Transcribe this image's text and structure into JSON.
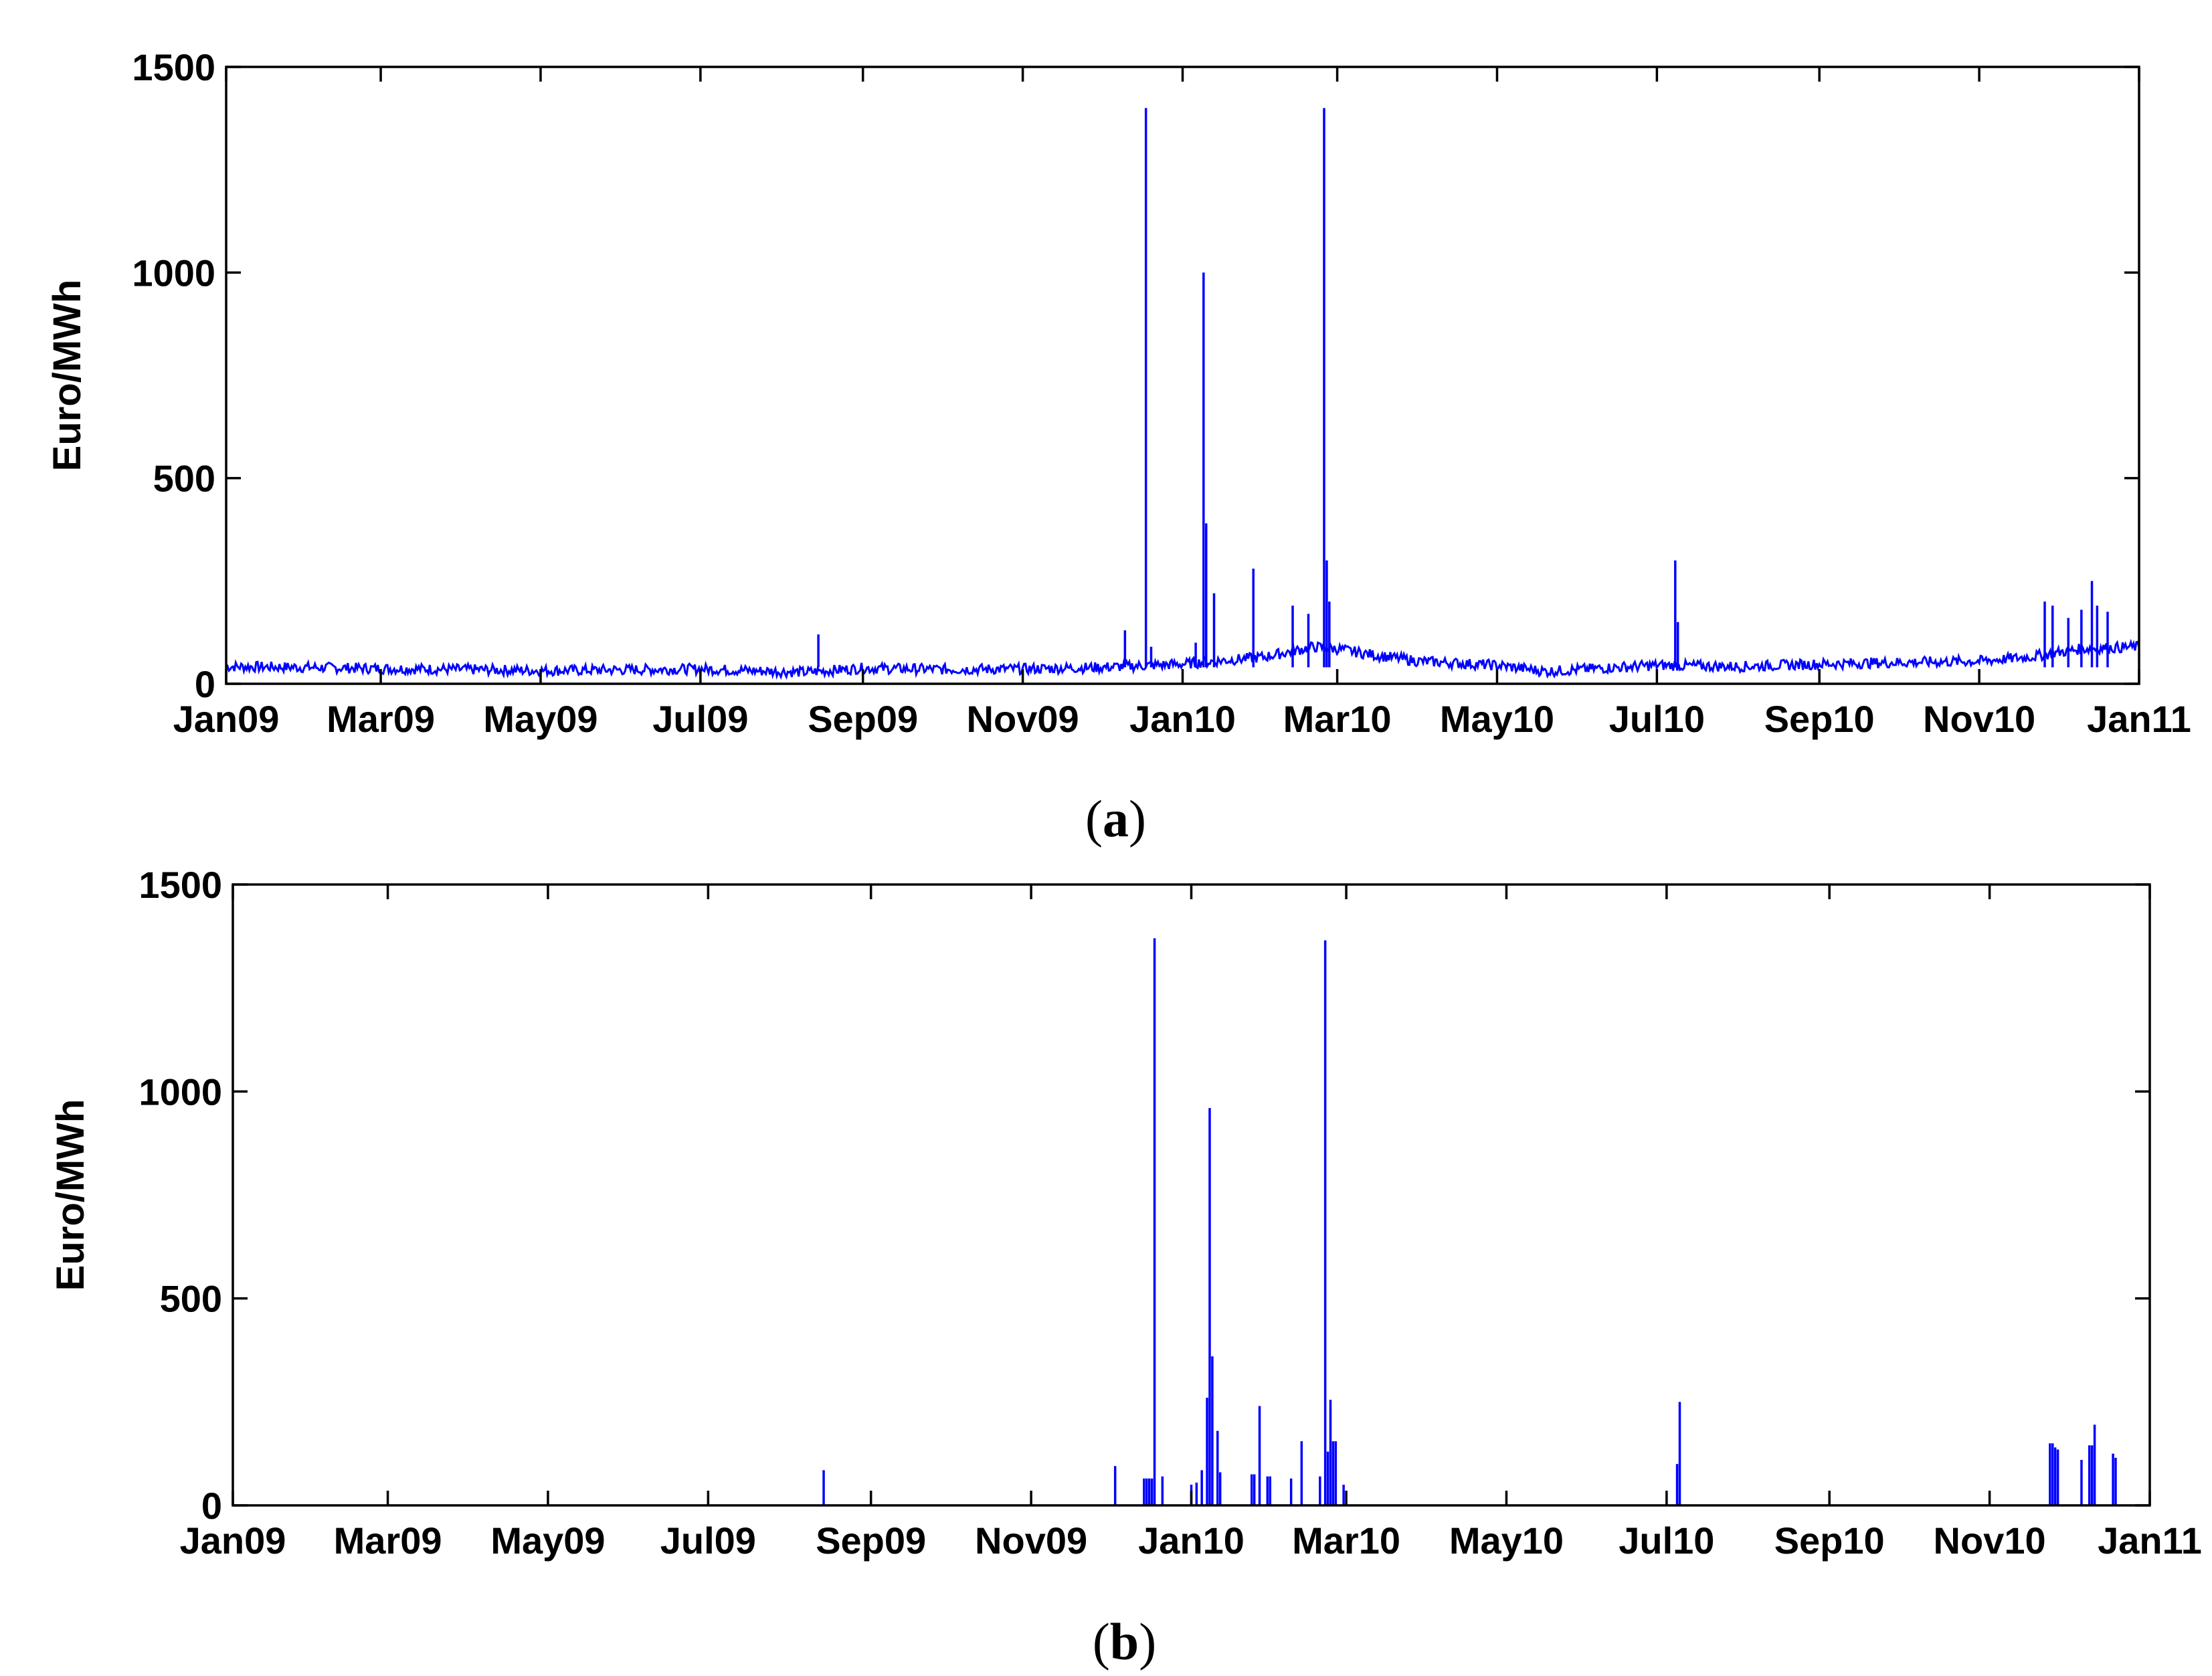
{
  "chart_data": [
    {
      "type": "line",
      "panel_label": "a",
      "ylabel": "Euro/MWh",
      "xlabel": "",
      "ylim": [
        0,
        1500
      ],
      "xlim": [
        "2009-01-01",
        "2011-01-01"
      ],
      "yticks": [
        "0",
        "500",
        "1000",
        "1500"
      ],
      "xticks": [
        {
          "date": "2009-01-01",
          "label": "Jan09"
        },
        {
          "date": "2009-03-01",
          "label": "Mar09"
        },
        {
          "date": "2009-05-01",
          "label": "May09"
        },
        {
          "date": "2009-07-01",
          "label": "Jul09"
        },
        {
          "date": "2009-09-01",
          "label": "Sep09"
        },
        {
          "date": "2009-11-01",
          "label": "Nov09"
        },
        {
          "date": "2010-01-01",
          "label": "Jan10"
        },
        {
          "date": "2010-03-01",
          "label": "Mar10"
        },
        {
          "date": "2010-05-01",
          "label": "May10"
        },
        {
          "date": "2010-07-01",
          "label": "Jul10"
        },
        {
          "date": "2010-09-01",
          "label": "Sep10"
        },
        {
          "date": "2010-11-01",
          "label": "Nov10"
        },
        {
          "date": "2011-01-01",
          "label": "Jan11"
        }
      ],
      "grid": false,
      "color": "#0000ff",
      "baseline": [
        [
          "2009-01-01",
          42
        ],
        [
          "2009-02-01",
          40
        ],
        [
          "2009-03-01",
          37
        ],
        [
          "2009-04-01",
          35
        ],
        [
          "2009-05-01",
          32
        ],
        [
          "2009-06-01",
          34
        ],
        [
          "2009-07-01",
          36
        ],
        [
          "2009-07-20",
          32
        ],
        [
          "2009-08-10",
          28
        ],
        [
          "2009-09-01",
          38
        ],
        [
          "2009-10-01",
          35
        ],
        [
          "2009-11-01",
          36
        ],
        [
          "2009-12-01",
          40
        ],
        [
          "2010-01-01",
          48
        ],
        [
          "2010-02-01",
          65
        ],
        [
          "2010-02-20",
          90
        ],
        [
          "2010-03-01",
          85
        ],
        [
          "2010-03-15",
          70
        ],
        [
          "2010-04-01",
          55
        ],
        [
          "2010-05-01",
          45
        ],
        [
          "2010-05-20",
          30
        ],
        [
          "2010-06-10",
          38
        ],
        [
          "2010-07-01",
          45
        ],
        [
          "2010-08-01",
          42
        ],
        [
          "2010-09-01",
          48
        ],
        [
          "2010-10-01",
          52
        ],
        [
          "2010-11-01",
          55
        ],
        [
          "2010-11-20",
          65
        ],
        [
          "2010-12-10",
          85
        ],
        [
          "2011-01-01",
          90
        ]
      ],
      "spikes": [
        [
          "2009-08-15",
          120
        ],
        [
          "2009-12-10",
          130
        ],
        [
          "2009-12-18",
          1400
        ],
        [
          "2009-12-20",
          90
        ],
        [
          "2010-01-06",
          100
        ],
        [
          "2010-01-09",
          1000
        ],
        [
          "2010-01-10",
          390
        ],
        [
          "2010-01-13",
          220
        ],
        [
          "2010-01-28",
          280
        ],
        [
          "2010-02-12",
          190
        ],
        [
          "2010-02-18",
          170
        ],
        [
          "2010-02-24",
          1400
        ],
        [
          "2010-02-25",
          300
        ],
        [
          "2010-02-26",
          200
        ],
        [
          "2010-07-08",
          300
        ],
        [
          "2010-07-09",
          150
        ],
        [
          "2010-11-26",
          200
        ],
        [
          "2010-11-29",
          190
        ],
        [
          "2010-12-05",
          160
        ],
        [
          "2010-12-10",
          180
        ],
        [
          "2010-12-14",
          250
        ],
        [
          "2010-12-16",
          190
        ],
        [
          "2010-12-20",
          175
        ]
      ]
    },
    {
      "type": "bar",
      "panel_label": "b",
      "ylabel": "Euro/MWh",
      "xlabel": "",
      "ylim": [
        0,
        1500
      ],
      "xlim": [
        "2009-01-01",
        "2011-01-01"
      ],
      "yticks": [
        "0",
        "500",
        "1000",
        "1500"
      ],
      "xticks": [
        {
          "date": "2009-01-01",
          "label": "Jan09"
        },
        {
          "date": "2009-03-01",
          "label": "Mar09"
        },
        {
          "date": "2009-05-01",
          "label": "May09"
        },
        {
          "date": "2009-07-01",
          "label": "Jul09"
        },
        {
          "date": "2009-09-01",
          "label": "Sep09"
        },
        {
          "date": "2009-11-01",
          "label": "Nov09"
        },
        {
          "date": "2010-01-01",
          "label": "Jan10"
        },
        {
          "date": "2010-03-01",
          "label": "Mar10"
        },
        {
          "date": "2010-05-01",
          "label": "May10"
        },
        {
          "date": "2010-07-01",
          "label": "Jul10"
        },
        {
          "date": "2010-09-01",
          "label": "Sep10"
        },
        {
          "date": "2010-11-01",
          "label": "Nov10"
        },
        {
          "date": "2011-01-01",
          "label": "Jan11"
        }
      ],
      "grid": false,
      "color": "#0000ff",
      "spikes": [
        [
          "2009-08-14",
          85
        ],
        [
          "2009-12-03",
          95
        ],
        [
          "2009-12-14",
          65
        ],
        [
          "2009-12-15",
          65
        ],
        [
          "2009-12-16",
          65
        ],
        [
          "2009-12-17",
          65
        ],
        [
          "2009-12-18",
          1370
        ],
        [
          "2009-12-21",
          70
        ],
        [
          "2010-01-01",
          50
        ],
        [
          "2010-01-03",
          55
        ],
        [
          "2010-01-05",
          85
        ],
        [
          "2010-01-07",
          260
        ],
        [
          "2010-01-08",
          960
        ],
        [
          "2010-01-09",
          360
        ],
        [
          "2010-01-11",
          180
        ],
        [
          "2010-01-12",
          80
        ],
        [
          "2010-01-24",
          75
        ],
        [
          "2010-01-25",
          75
        ],
        [
          "2010-01-27",
          240
        ],
        [
          "2010-01-30",
          70
        ],
        [
          "2010-01-31",
          70
        ],
        [
          "2010-02-08",
          65
        ],
        [
          "2010-02-12",
          155
        ],
        [
          "2010-02-19",
          70
        ],
        [
          "2010-02-21",
          1365
        ],
        [
          "2010-02-22",
          130
        ],
        [
          "2010-02-23",
          255
        ],
        [
          "2010-02-24",
          155
        ],
        [
          "2010-02-25",
          155
        ],
        [
          "2010-02-28",
          50
        ],
        [
          "2010-07-05",
          100
        ],
        [
          "2010-07-06",
          250
        ],
        [
          "2010-11-24",
          150
        ],
        [
          "2010-11-25",
          150
        ],
        [
          "2010-11-26",
          140
        ],
        [
          "2010-11-27",
          135
        ],
        [
          "2010-12-06",
          110
        ],
        [
          "2010-12-09",
          145
        ],
        [
          "2010-12-10",
          145
        ],
        [
          "2010-12-11",
          195
        ],
        [
          "2010-12-18",
          125
        ],
        [
          "2010-12-19",
          115
        ]
      ]
    }
  ]
}
